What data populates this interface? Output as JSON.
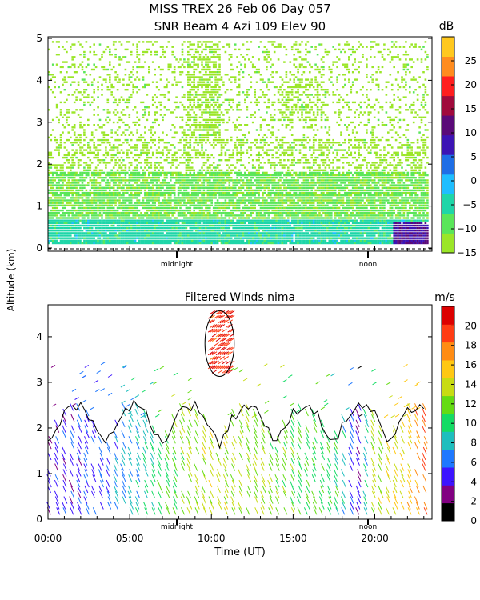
{
  "figure": {
    "title_line1": "MISS TREX  26 Feb 06 Day 057",
    "title_line2": "SNR Beam 4 Azi 109 Elev 90",
    "shared_ylabel": "Altitude (km)",
    "xlabel": "Time (UT)",
    "marker_midnight": "midnight",
    "marker_noon": "noon"
  },
  "chart_data": [
    {
      "type": "heatmap",
      "title": "SNR Beam 4 Azi 109 Elev 90",
      "colorbar_label": "dB",
      "colorbar_ticks": [
        "25",
        "20",
        "15",
        "10",
        "5",
        "0",
        "−5",
        "−10",
        "−15"
      ],
      "colorbar_range": [
        -15,
        30
      ],
      "colors": [
        "#9be628",
        "#5ae65a",
        "#1ed6a8",
        "#1ebeff",
        "#1e6ee6",
        "#3c14b4",
        "#5a0a78",
        "#a00a3c",
        "#ff1e1e",
        "#ff8c1e",
        "#ffc81e"
      ],
      "yticks": [
        "5",
        "4",
        "3",
        "2",
        "1",
        "0"
      ],
      "ylim": [
        0,
        5
      ],
      "xlim_hours": [
        0,
        23.5
      ],
      "approx_layers": [
        {
          "alt_km": [
            0.1,
            0.7
          ],
          "snr_db": -5,
          "desc_color": "blue/cyan"
        },
        {
          "alt_km": [
            0.7,
            1.8
          ],
          "snr_db": -10,
          "desc_color": "green"
        },
        {
          "alt_km": [
            1.8,
            5.0
          ],
          "snr_db": -13,
          "desc_color": "light green, patchy"
        }
      ]
    },
    {
      "type": "scatter",
      "title": "Filtered Winds nima",
      "colorbar_label": "m/s",
      "colorbar_ticks": [
        "20",
        "18",
        "16",
        "14",
        "12",
        "10",
        "8",
        "6",
        "4",
        "2",
        "0"
      ],
      "colorbar_range": [
        0,
        22
      ],
      "colors": [
        "#000000",
        "#820082",
        "#3c14ff",
        "#1e78ff",
        "#1ebebe",
        "#14dc64",
        "#64dc14",
        "#c8dc14",
        "#ffc814",
        "#ff8c14",
        "#ff3c14",
        "#dc0000"
      ],
      "yticks": [
        "4",
        "3",
        "2",
        "1",
        "0"
      ],
      "ylim": [
        0,
        4.7
      ],
      "xticks": [
        "00:00",
        "05:00",
        "10:00",
        "15:00",
        "20:00"
      ],
      "xlim_hours": [
        0,
        23.5
      ],
      "wind_speed_by_time": {
        "hours": [
          0,
          2,
          4,
          6,
          8,
          10,
          12,
          14,
          16,
          18,
          19,
          20,
          21,
          22,
          23
        ],
        "speed_ms": [
          4,
          5,
          6,
          9,
          12,
          14,
          13,
          12,
          11,
          10,
          3,
          13,
          14,
          15,
          18
        ]
      },
      "high_wind_patch": {
        "hours": [
          9.8,
          11.2
        ],
        "alt_km": [
          3.2,
          4.5
        ],
        "speed_ms": 20
      }
    }
  ]
}
